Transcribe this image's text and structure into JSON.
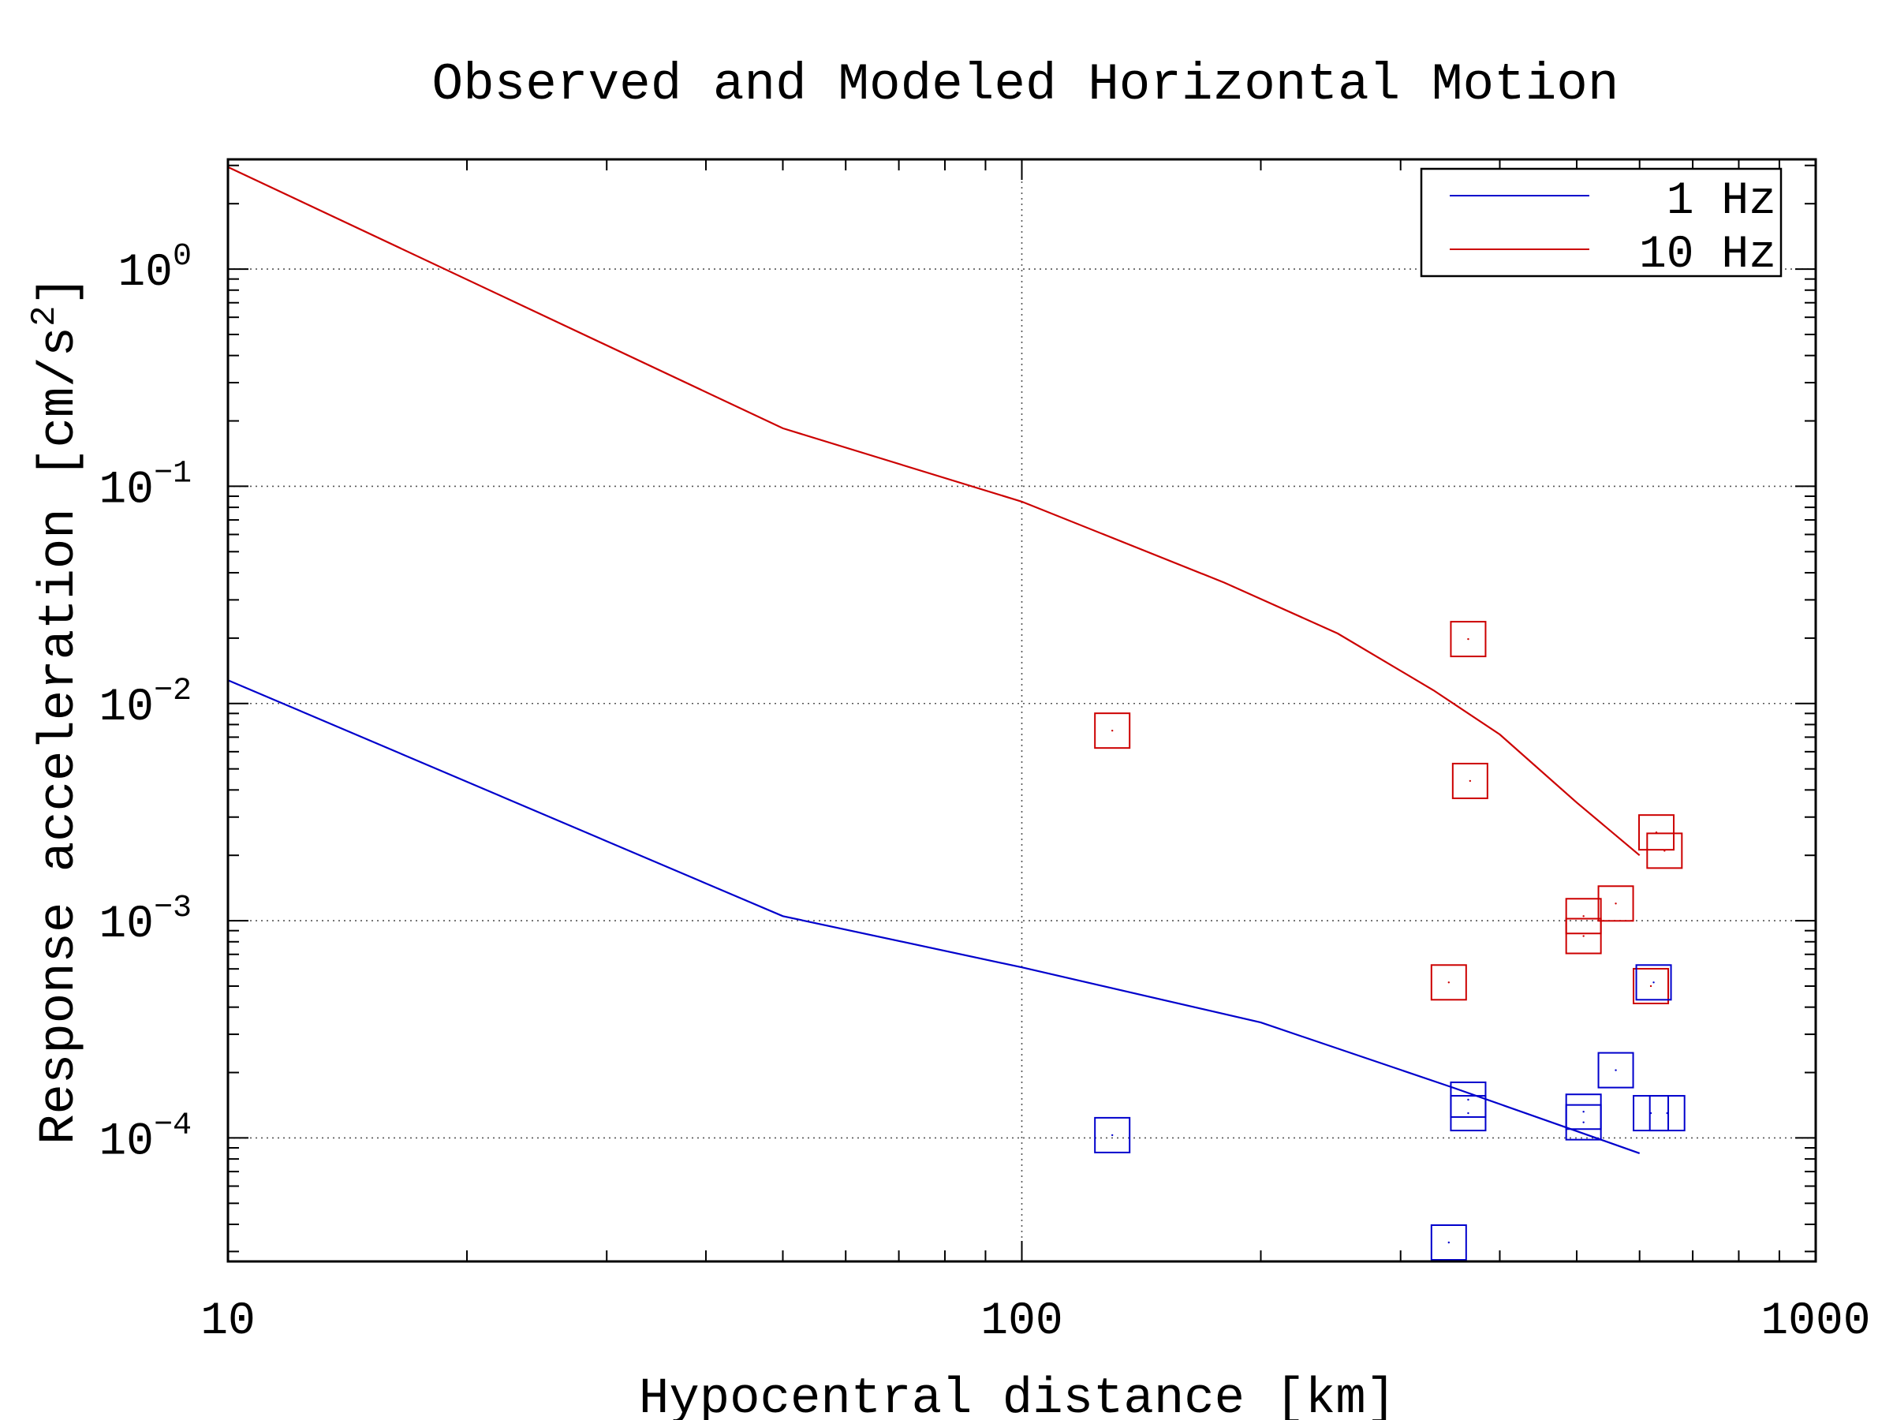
{
  "chart_data": {
    "type": "scatter",
    "title": "Observed and Modeled Horizontal Motion",
    "xlabel": "Hypocentral distance [km]",
    "ylabel_main": "Response acceleration [cm/s",
    "ylabel_sup": "2",
    "ylabel_tail": "]",
    "x_scale": "log",
    "y_scale": "log",
    "xlim": [
      10,
      1000
    ],
    "ylim": [
      2.7e-05,
      3.2
    ],
    "x_ticks": [
      {
        "value": 10,
        "label": "10"
      },
      {
        "value": 100,
        "label": "100"
      },
      {
        "value": 1000,
        "label": "1000"
      }
    ],
    "y_ticks": [
      {
        "value": 0.0001,
        "base": "10",
        "exp": "−4"
      },
      {
        "value": 0.001,
        "base": "10",
        "exp": "−3"
      },
      {
        "value": 0.01,
        "base": "10",
        "exp": "−2"
      },
      {
        "value": 0.1,
        "base": "10",
        "exp": "−1"
      },
      {
        "value": 1,
        "base": "10",
        "exp": "0"
      }
    ],
    "grid": true,
    "legend_position": "top-right",
    "series": [
      {
        "name": "1 Hz",
        "color": "#0000cc",
        "kind": "line",
        "points": [
          [
            10,
            0.0128
          ],
          [
            50,
            0.00105
          ],
          [
            100,
            0.00061
          ],
          [
            200,
            0.00034
          ],
          [
            350,
            0.00017
          ],
          [
            600,
            8.5e-05
          ]
        ]
      },
      {
        "name": "10 Hz",
        "color": "#cc0000",
        "kind": "line",
        "points": [
          [
            10,
            2.95
          ],
          [
            50,
            0.185
          ],
          [
            100,
            0.085
          ],
          [
            180,
            0.036
          ],
          [
            250,
            0.021
          ],
          [
            330,
            0.0115
          ],
          [
            400,
            0.0072
          ],
          [
            500,
            0.0035
          ],
          [
            600,
            0.002
          ]
        ]
      }
    ],
    "observed": [
      {
        "color": "#cc0000",
        "points": [
          [
            130,
            0.0075
          ],
          [
            365,
            0.0198
          ],
          [
            367,
            0.0044
          ],
          [
            345,
            0.00052
          ],
          [
            510,
            0.00105
          ],
          [
            510,
            0.00085
          ],
          [
            560,
            0.0012
          ],
          [
            630,
            0.00255
          ],
          [
            645,
            0.0021
          ],
          [
            620,
            0.0005
          ]
        ]
      },
      {
        "color": "#0000cc",
        "points": [
          [
            130,
            0.000103
          ],
          [
            365,
            0.00015
          ],
          [
            365,
            0.00013
          ],
          [
            510,
            0.000132
          ],
          [
            510,
            0.000118
          ],
          [
            560,
            0.000205
          ],
          [
            625,
            0.00052
          ],
          [
            620,
            0.00013
          ],
          [
            650,
            0.00013
          ],
          [
            345,
            3.3e-05
          ]
        ]
      }
    ]
  }
}
